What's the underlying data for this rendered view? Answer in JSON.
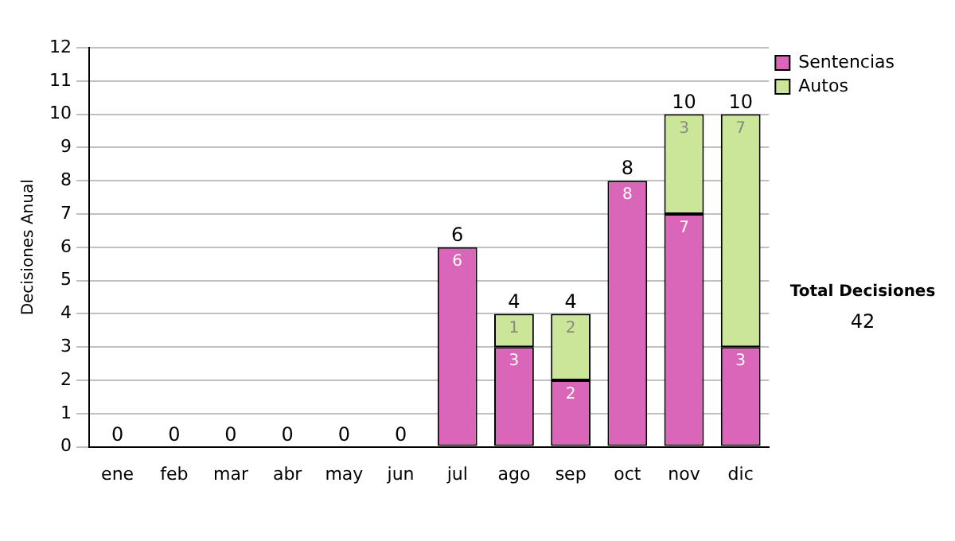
{
  "chart_data": {
    "type": "bar",
    "stacked": true,
    "ylabel": "Decisiones Anual",
    "categories": [
      "ene",
      "feb",
      "mar",
      "abr",
      "may",
      "jun",
      "jul",
      "ago",
      "sep",
      "oct",
      "nov",
      "dic"
    ],
    "series": [
      {
        "name": "Sentencias",
        "color": "#d966b8",
        "values": [
          0,
          0,
          0,
          0,
          0,
          0,
          6,
          3,
          2,
          8,
          7,
          3
        ],
        "value_labels": [
          null,
          null,
          null,
          null,
          null,
          null,
          "6",
          "3",
          "2",
          "8",
          "7",
          "3"
        ]
      },
      {
        "name": "Autos",
        "color": "#cce699",
        "values": [
          0,
          0,
          0,
          0,
          0,
          0,
          0,
          1,
          2,
          0,
          3,
          7
        ],
        "value_labels": [
          null,
          null,
          null,
          null,
          null,
          null,
          null,
          "1",
          "2",
          null,
          "3",
          "7"
        ]
      }
    ],
    "totals": [
      "0",
      "0",
      "0",
      "0",
      "0",
      "0",
      "6",
      "4",
      "4",
      "8",
      "10",
      "10"
    ],
    "ylim": [
      0,
      12
    ],
    "yticks": [
      0,
      1,
      2,
      3,
      4,
      5,
      6,
      7,
      8,
      9,
      10,
      11,
      12
    ],
    "grid": "y",
    "legend": "top right",
    "annotations": [
      "Total Decisiones",
      "42"
    ]
  }
}
